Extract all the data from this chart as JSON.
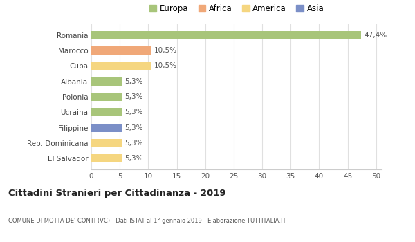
{
  "categories": [
    "El Salvador",
    "Rep. Dominicana",
    "Filippine",
    "Ucraina",
    "Polonia",
    "Albania",
    "Cuba",
    "Marocco",
    "Romania"
  ],
  "values": [
    5.3,
    5.3,
    5.3,
    5.3,
    5.3,
    5.3,
    10.5,
    10.5,
    47.4
  ],
  "labels": [
    "5,3%",
    "5,3%",
    "5,3%",
    "5,3%",
    "5,3%",
    "5,3%",
    "10,5%",
    "10,5%",
    "47,4%"
  ],
  "bar_colors": [
    "#f5d680",
    "#f5d680",
    "#7b8fc7",
    "#a8c57a",
    "#a8c57a",
    "#a8c57a",
    "#f5d680",
    "#f0a878",
    "#a8c57a"
  ],
  "legend_labels": [
    "Europa",
    "Africa",
    "America",
    "Asia"
  ],
  "legend_colors": [
    "#a8c57a",
    "#f0a878",
    "#f5d680",
    "#7b8fc7"
  ],
  "title": "Cittadini Stranieri per Cittadinanza - 2019",
  "subtitle": "COMUNE DI MOTTA DE' CONTI (VC) - Dati ISTAT al 1° gennaio 2019 - Elaborazione TUTTITALIA.IT",
  "xlim": [
    0,
    50
  ],
  "xticks": [
    0,
    5,
    10,
    15,
    20,
    25,
    30,
    35,
    40,
    45,
    50
  ],
  "background_color": "#ffffff",
  "grid_color": "#e0e0e0"
}
